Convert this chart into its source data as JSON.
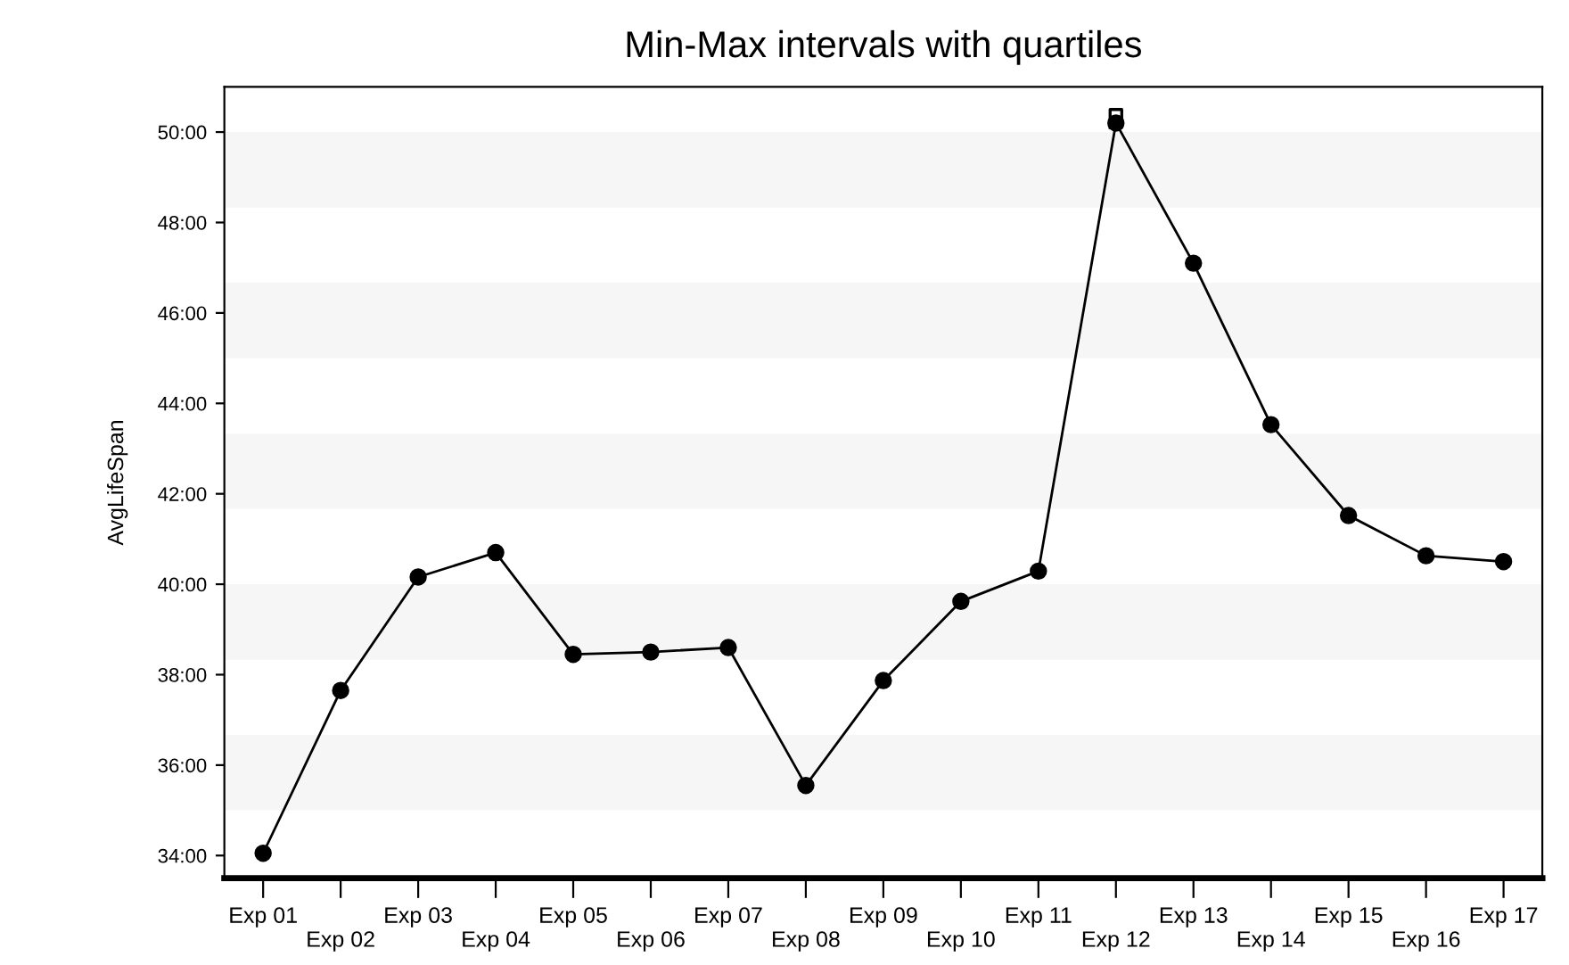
{
  "chart_data": {
    "type": "line",
    "title": "Min-Max intervals with quartiles",
    "ylabel": "AvgLifeSpan",
    "categories": [
      "Exp 01",
      "Exp 02",
      "Exp 03",
      "Exp 04",
      "Exp 05",
      "Exp 06",
      "Exp 07",
      "Exp 08",
      "Exp 09",
      "Exp 10",
      "Exp 11",
      "Exp 12",
      "Exp 13",
      "Exp 14",
      "Exp 15",
      "Exp 16",
      "Exp 17"
    ],
    "series": [
      {
        "color": "#000000",
        "marker": "circle",
        "values": [
          34.05,
          37.65,
          40.16,
          40.7,
          38.45,
          38.5,
          38.6,
          35.55,
          37.87,
          39.62,
          40.29,
          50.2,
          47.1,
          43.53,
          41.52,
          40.63,
          40.5
        ]
      },
      {
        "type": "box",
        "color": "#000000",
        "boxes": [
          null,
          null,
          null,
          null,
          null,
          null,
          null,
          null,
          null,
          null,
          null,
          {
            "low": 50.1,
            "q1": 50.1,
            "median": 50.2,
            "q3": 50.5,
            "high": 50.5
          },
          null,
          null,
          null,
          null,
          null
        ]
      }
    ],
    "ylim": [
      33.5,
      51
    ],
    "yticks": [
      {
        "value": 34,
        "label": "34:00"
      },
      {
        "value": 36,
        "label": "36:00"
      },
      {
        "value": 38,
        "label": "38:00"
      },
      {
        "value": 40,
        "label": "40:00"
      },
      {
        "value": 42,
        "label": "42:00"
      },
      {
        "value": 44,
        "label": "44:00"
      },
      {
        "value": 46,
        "label": "46:00"
      },
      {
        "value": 48,
        "label": "48:00"
      },
      {
        "value": 50,
        "label": "50:00"
      }
    ],
    "bands": [
      {
        "axis": "y",
        "from": 48.33,
        "to": 50,
        "color": "#f6f6f6"
      },
      {
        "axis": "y",
        "from": 45,
        "to": 46.67,
        "color": "#f6f6f6"
      },
      {
        "axis": "y",
        "from": 41.67,
        "to": 43.33,
        "color": "#f6f6f6"
      },
      {
        "axis": "y",
        "from": 38.33,
        "to": 40,
        "color": "#f6f6f6"
      },
      {
        "axis": "y",
        "from": 35,
        "to": 36.67,
        "color": "#f6f6f6"
      }
    ],
    "grid": false,
    "legend": false
  }
}
